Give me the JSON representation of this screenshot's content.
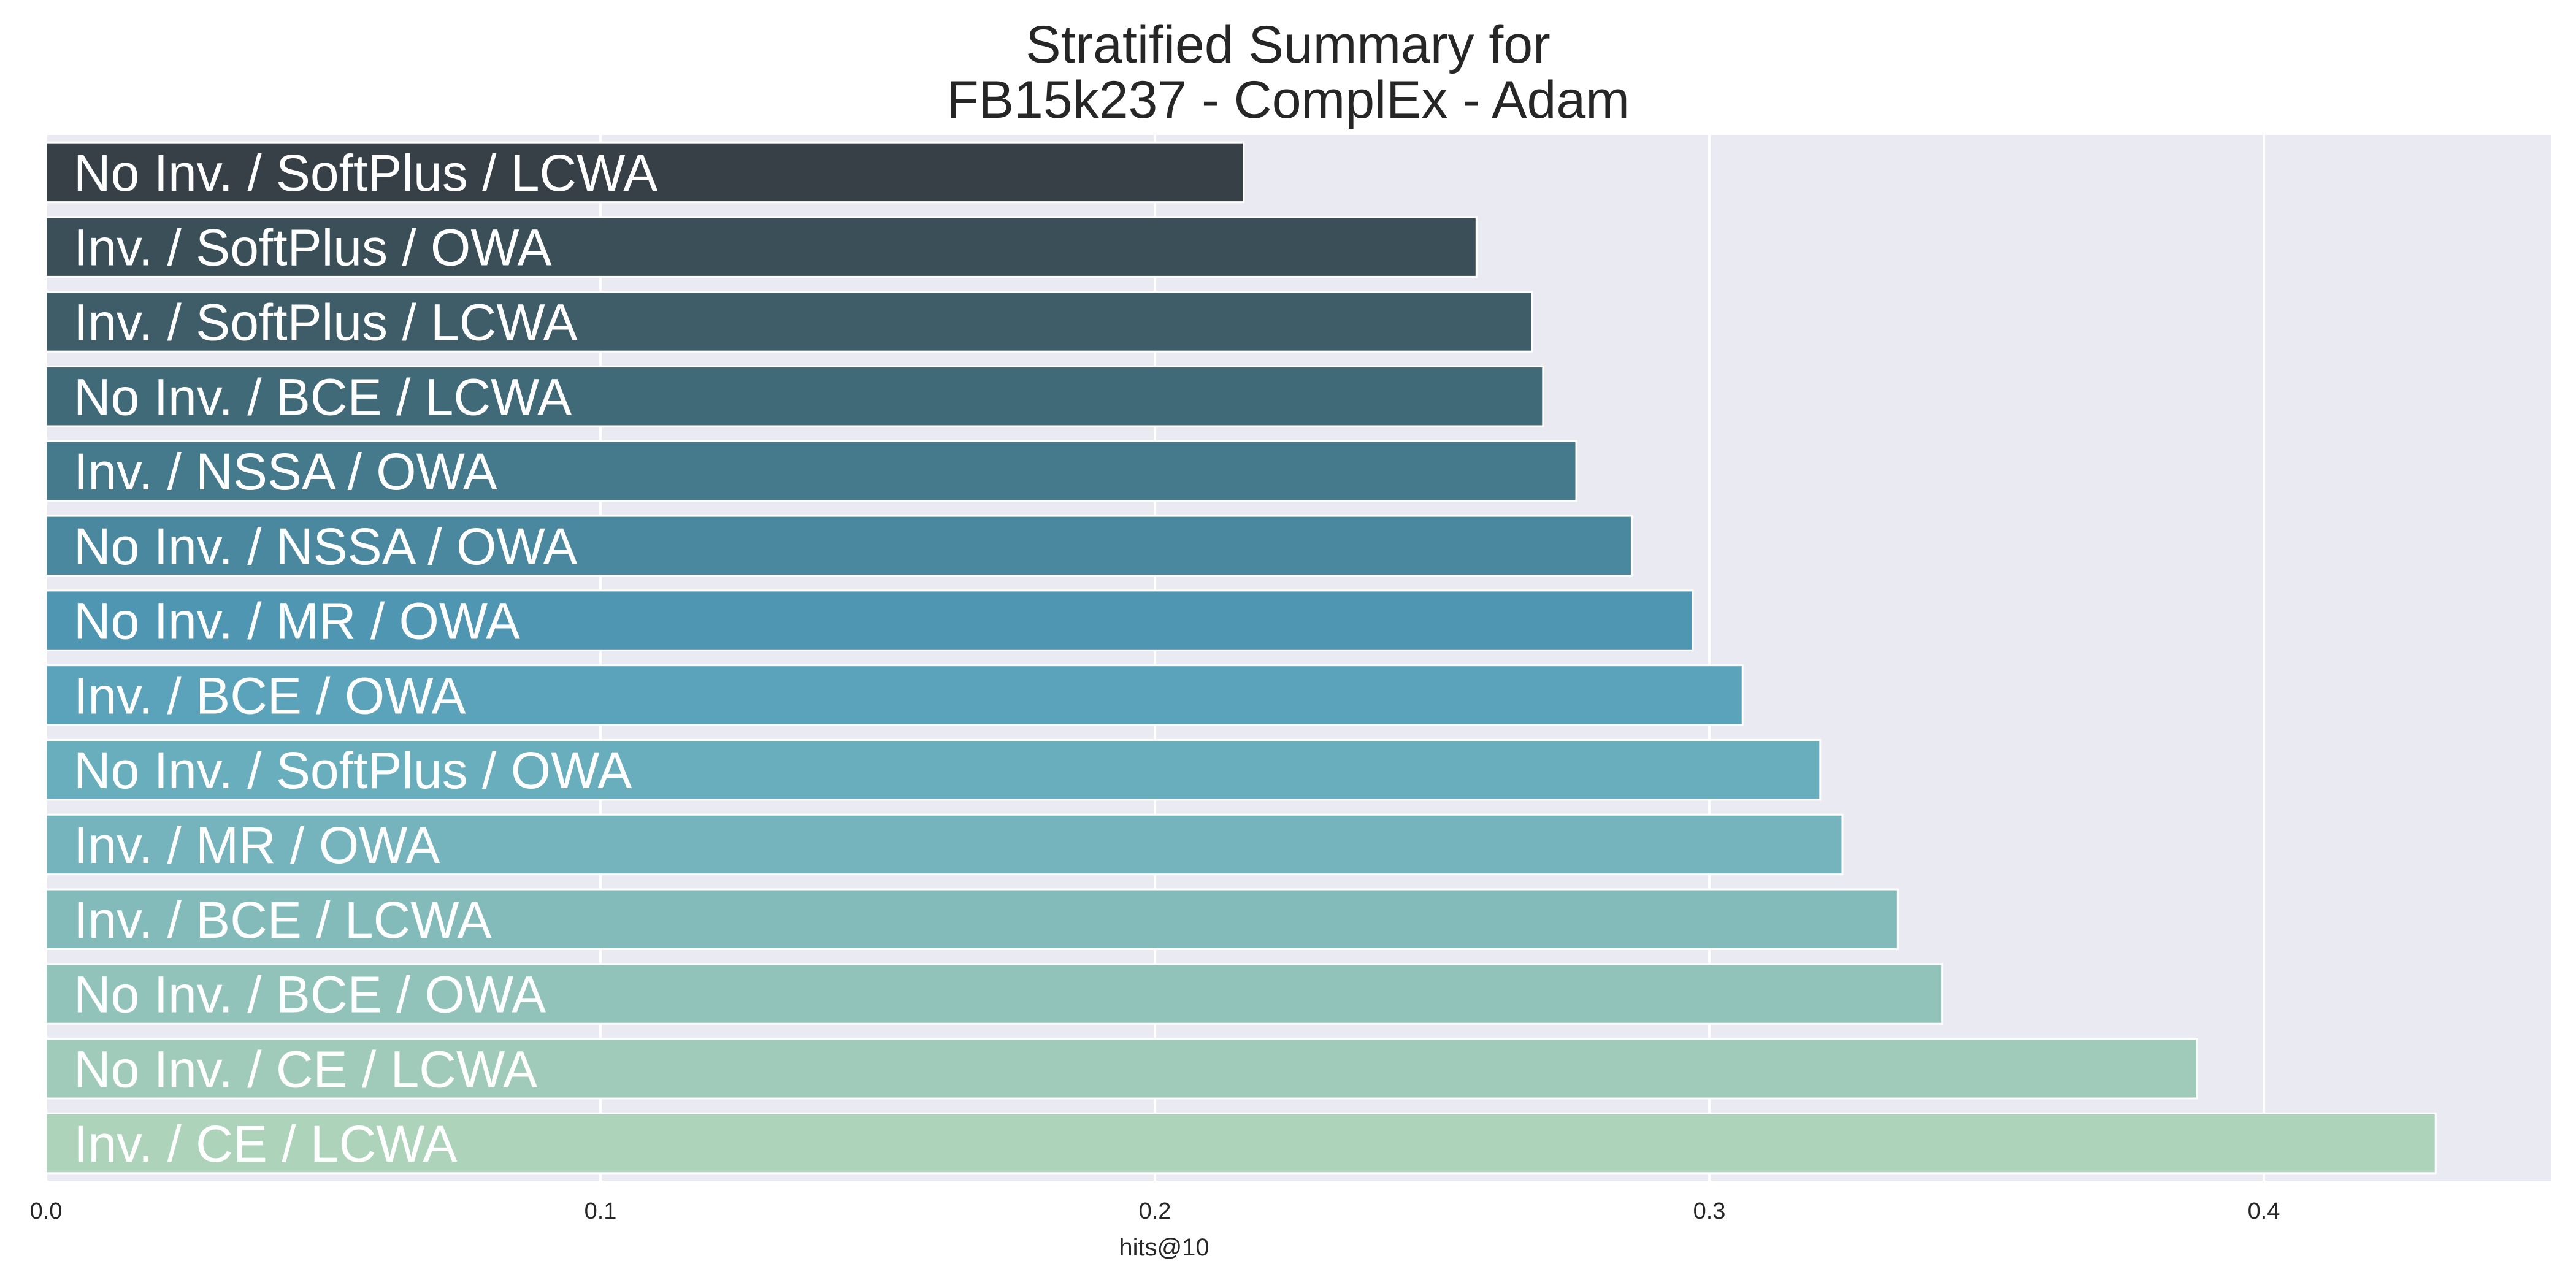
{
  "chart_data": {
    "type": "bar",
    "orientation": "horizontal",
    "title_line1": "Stratified Summary for",
    "title_line2": "FB15k237 - ComplEx - Adam",
    "xlabel": "hits@10",
    "ylabel": "",
    "xlim": [
      0.0,
      0.45
    ],
    "xticks": [
      "0.0",
      "0.1",
      "0.2",
      "0.3",
      "0.4"
    ],
    "grid": true,
    "categories": [
      "No Inv. / SoftPlus / LCWA",
      "Inv. / SoftPlus / OWA",
      "Inv. / SoftPlus / LCWA",
      "No Inv. / BCE / LCWA",
      "Inv. / NSSA / OWA",
      "No Inv. / NSSA / OWA",
      "No Inv. / MR / OWA",
      "Inv. / BCE / OWA",
      "No Inv. / SoftPlus / OWA",
      "Inv. / MR / OWA",
      "Inv. / BCE / LCWA",
      "No Inv. / BCE / OWA",
      "No Inv. / CE / LCWA",
      "Inv. / CE / LCWA"
    ],
    "values": [
      0.216,
      0.258,
      0.268,
      0.27,
      0.276,
      0.286,
      0.297,
      0.306,
      0.32,
      0.324,
      0.334,
      0.342,
      0.388,
      0.431
    ],
    "colors": [
      "#373f47",
      "#3a4f58",
      "#3e5d69",
      "#416a79",
      "#457a8c",
      "#4a88a0",
      "#4f96b2",
      "#5aa3bb",
      "#68aebd",
      "#76b4bd",
      "#83bbbb",
      "#91c3ba",
      "#a0cbbb",
      "#add3bb"
    ]
  },
  "style": {
    "plot_background": "#eaeaf2",
    "grid_color": "#ffffff",
    "text_color": "#262626"
  }
}
